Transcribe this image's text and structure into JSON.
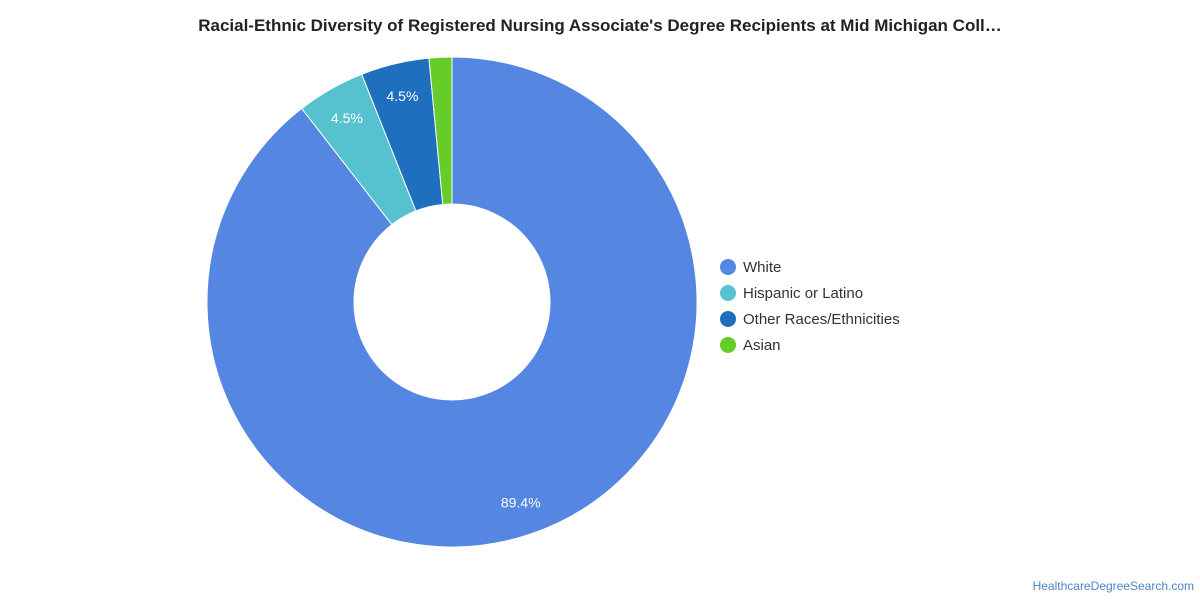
{
  "chart_data": {
    "type": "pie",
    "title": "Racial-Ethnic Diversity of Registered Nursing Associate's Degree Recipients at Mid Michigan Coll…",
    "categories": [
      "White",
      "Hispanic or Latino",
      "Other Races/Ethnicities",
      "Asian"
    ],
    "values": [
      89.4,
      4.5,
      4.5,
      1.5
    ],
    "data_labels": [
      "89.4%",
      "4.5%",
      "4.5%",
      ""
    ],
    "colors": [
      "#5486e2",
      "#56c2d0",
      "#1f6fbf",
      "#66cc2a"
    ],
    "donut": true,
    "legend_position": "right"
  },
  "credit": "HealthcareDegreeSearch.com"
}
